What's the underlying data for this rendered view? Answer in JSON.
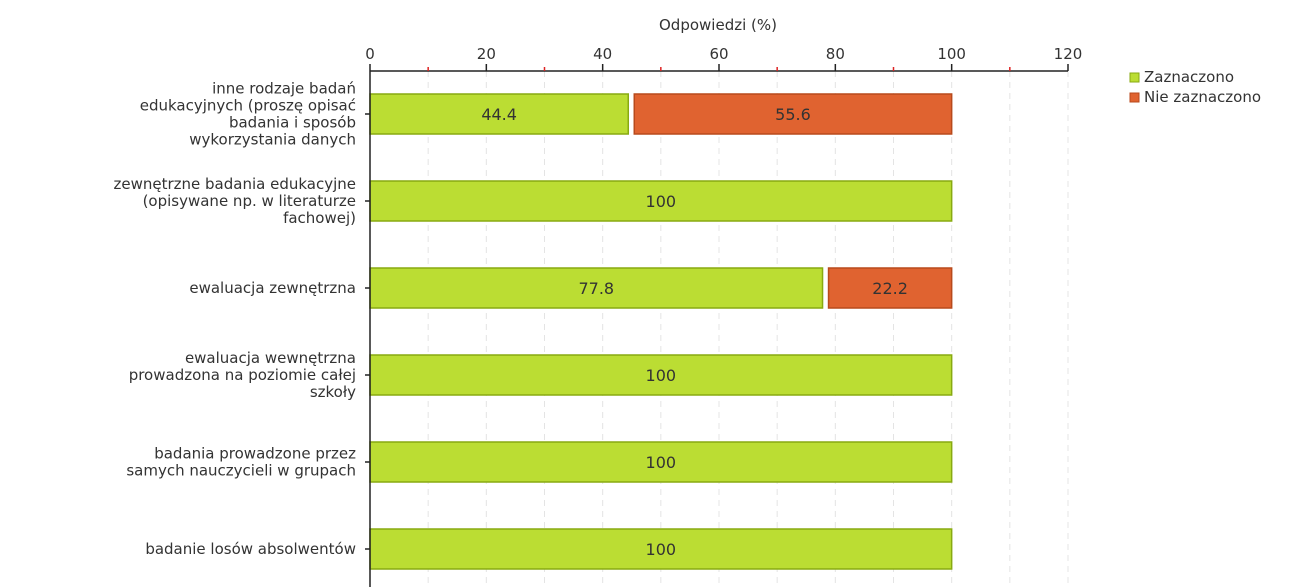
{
  "chart_data": {
    "type": "bar",
    "orientation": "horizontal",
    "stacked": true,
    "title": "",
    "xlabel": "Odpowiedzi (%)",
    "ylabel": "",
    "xlim": [
      0,
      120
    ],
    "x_ticks": [
      0,
      20,
      40,
      60,
      80,
      100,
      120
    ],
    "grid": true,
    "legend_position": "top-right",
    "categories": [
      [
        "inne rodzaje badań",
        "edukacyjnych (proszę opisać",
        "badania i sposób",
        "wykorzystania danych"
      ],
      [
        "zewnętrzne badania edukacyjne",
        "(opisywane np. w literaturze",
        "fachowej)"
      ],
      [
        "ewaluacja zewnętrzna"
      ],
      [
        "ewaluacja wewnętrzna",
        "prowadzona na poziomie całej",
        "szkoły"
      ],
      [
        "badania prowadzone przez",
        "samych nauczycieli w grupach"
      ],
      [
        "badanie losów absolwentów"
      ]
    ],
    "series": [
      {
        "name": "Zaznaczono",
        "color": "#bbdd33",
        "stroke": "#88aa11",
        "values": [
          44.4,
          100,
          77.8,
          100,
          100,
          100
        ]
      },
      {
        "name": "Nie zaznaczono",
        "color": "#e06330",
        "stroke": "#b84a1c",
        "values": [
          55.6,
          0,
          22.2,
          0,
          0,
          0
        ]
      }
    ],
    "data_labels": [
      [
        "44.4",
        "100",
        "77.8",
        "100",
        "100",
        "100"
      ],
      [
        "55.6",
        "",
        "22.2",
        "",
        "",
        ""
      ]
    ]
  }
}
